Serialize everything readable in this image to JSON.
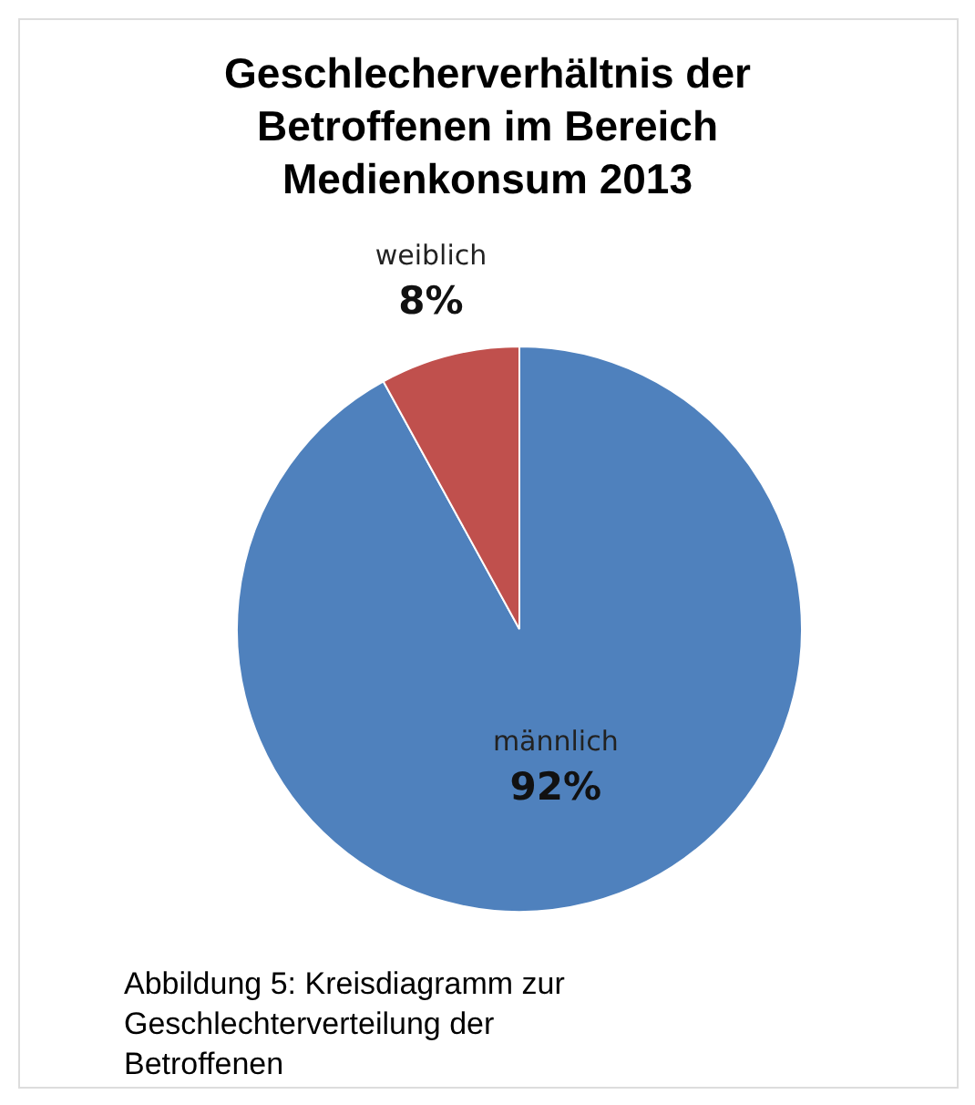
{
  "chart_data": {
    "type": "pie",
    "title": "Geschlecherverhältnis der Betroffenen im Bereich Medienkonsum 2013",
    "categories": [
      "männlich",
      "weiblich"
    ],
    "values": [
      92,
      8
    ],
    "value_labels": [
      "92%",
      "8%"
    ],
    "colors": [
      "#4f81bd",
      "#c0504d"
    ],
    "annotations": [
      "Abbildung 5: Kreisdiagramm zur Geschlechterverteilung der Betroffenen"
    ]
  }
}
